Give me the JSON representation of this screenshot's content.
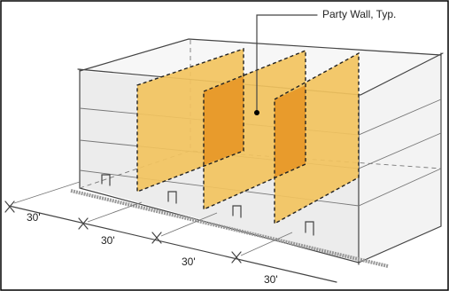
{
  "callout": {
    "label": "Party Wall, Typ."
  },
  "dimensions": [
    "30'",
    "30'",
    "30'",
    "30'"
  ]
}
